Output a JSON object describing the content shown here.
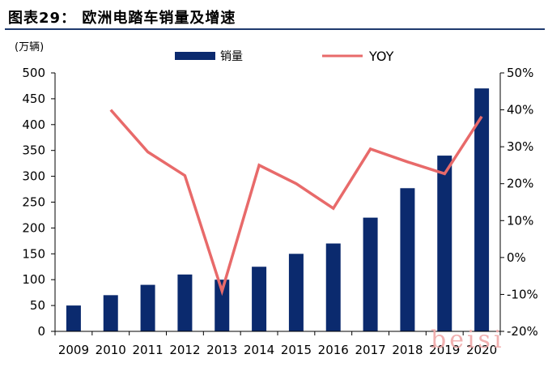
{
  "figure": {
    "title": "图表29：   欧洲电踏车销量及增速",
    "watermark": "beisi"
  },
  "chart_data": {
    "type": "bar",
    "categories": [
      "2009",
      "2010",
      "2011",
      "2012",
      "2013",
      "2014",
      "2015",
      "2016",
      "2017",
      "2018",
      "2019",
      "2020"
    ],
    "series": [
      {
        "name": "销量",
        "type": "bar",
        "axis": "left",
        "color": "#0b2a6e",
        "values": [
          50,
          70,
          90,
          110,
          100,
          125,
          150,
          170,
          220,
          277,
          340,
          470
        ]
      },
      {
        "name": "YOY",
        "type": "line",
        "axis": "right",
        "color": "#e86a6a",
        "values": [
          null,
          40,
          28.6,
          22.2,
          -9.1,
          25,
          20,
          13.3,
          29.4,
          25.9,
          22.7,
          38.2
        ]
      }
    ],
    "y_left": {
      "label": "(万辆)",
      "min": 0,
      "max": 500,
      "step": 50,
      "ticks": [
        "0",
        "50",
        "100",
        "150",
        "200",
        "250",
        "300",
        "350",
        "400",
        "450",
        "500"
      ]
    },
    "y_right": {
      "min": -20,
      "max": 50,
      "step": 10,
      "ticks": [
        "-20%",
        "-10%",
        "0%",
        "10%",
        "20%",
        "30%",
        "40%",
        "50%"
      ]
    },
    "legend": {
      "position": "top"
    },
    "grid": false
  }
}
